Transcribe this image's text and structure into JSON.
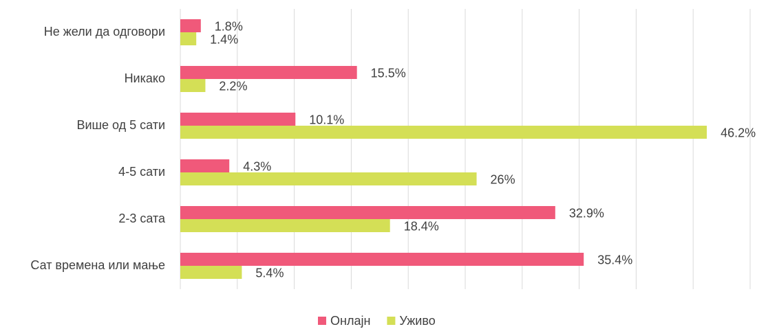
{
  "chart_data": {
    "type": "hbar",
    "categories": [
      "Не жели да одговори",
      "Никако",
      "Више од 5 сати",
      "4-5 сати",
      "2-3 сата",
      "Сат времена или мање"
    ],
    "series": [
      {
        "name": "Онлајн",
        "color": "#f0597a",
        "values": [
          1.8,
          15.5,
          10.1,
          4.3,
          32.9,
          35.4
        ],
        "value_labels": [
          "1.8%",
          "15.5%",
          "10.1%",
          "4.3%",
          "32.9%",
          "35.4%"
        ]
      },
      {
        "name": "Уживо",
        "color": "#d4df56",
        "values": [
          1.4,
          2.2,
          46.2,
          26,
          18.4,
          5.4
        ],
        "value_labels": [
          "1.4%",
          "2.2%",
          "46.2%",
          "26%",
          "18.4%",
          "5.4%"
        ]
      }
    ],
    "xlim": [
      0,
      50
    ],
    "xticks": [
      0,
      5,
      10,
      15,
      20,
      25,
      30,
      35,
      40,
      45,
      50
    ],
    "grid": true,
    "legend": "bottom"
  }
}
